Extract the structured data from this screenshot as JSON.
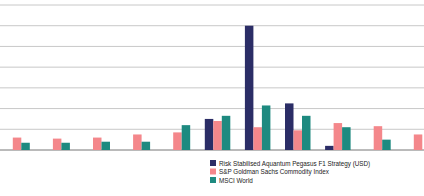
{
  "chart_data": {
    "type": "bar",
    "categories": [
      null,
      null,
      null,
      null,
      null,
      null,
      null,
      null,
      null,
      null,
      null
    ],
    "series": [
      {
        "name": "Risk Stabilised Aquantum Pegasus F1 Strategy (USD)",
        "color": "#2b2d66",
        "values": [
          null,
          null,
          null,
          null,
          null,
          1.5,
          6.0,
          2.25,
          0.2,
          null,
          null
        ]
      },
      {
        "name": "S&P Goldman Sachs Commodity Index",
        "color": "#f4878b",
        "values": [
          0.6,
          0.55,
          0.6,
          0.75,
          0.85,
          1.4,
          1.1,
          0.95,
          1.3,
          1.15,
          0.75
        ]
      },
      {
        "name": "MSCI World",
        "color": "#1e8a80",
        "values": [
          0.35,
          0.35,
          0.4,
          0.4,
          1.2,
          1.65,
          2.15,
          1.65,
          1.1,
          0.5,
          null
        ]
      }
    ],
    "ylim": [
      0,
      7
    ],
    "yticks": [
      0,
      1,
      2,
      3,
      4,
      5,
      6,
      7
    ],
    "grid": true,
    "legend": "bottom",
    "tick_labels": false
  }
}
